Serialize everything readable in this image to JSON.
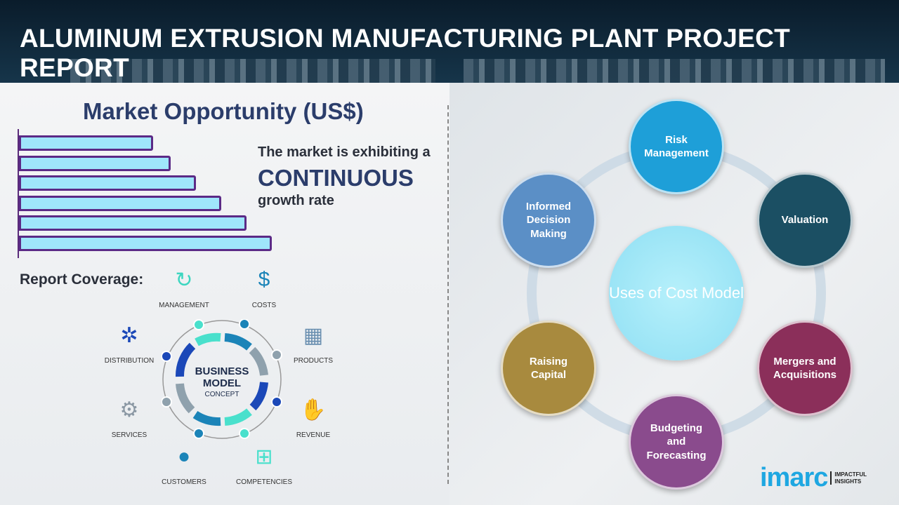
{
  "header": {
    "title": "ALUMINUM EXTRUSION MANUFACTURING PLANT PROJECT REPORT"
  },
  "market": {
    "title": "Market Opportunity (US$)",
    "bars_relative": [
      0.53,
      0.6,
      0.7,
      0.8,
      0.9,
      1.0
    ],
    "bar_color": "#9fe6fb",
    "bar_border": "#5b2a86",
    "line1": "The market is exhibiting a",
    "highlight": "CONTINUOUS",
    "line3": "growth rate"
  },
  "coverage": {
    "label": "Report Coverage:",
    "center_line1": "BUSINESS",
    "center_line2": "MODEL",
    "center_line3": "CONCEPT",
    "items": [
      "MANAGEMENT",
      "COSTS",
      "PRODUCTS",
      "REVENUE",
      "COMPETENCIES",
      "CUSTOMERS",
      "SERVICES",
      "DISTRIBUTION"
    ]
  },
  "uses": {
    "center": "Uses of Cost Model",
    "nodes": [
      {
        "label": "Risk Management",
        "color": "#1e9fd8"
      },
      {
        "label": "Valuation",
        "color": "#1b4f63"
      },
      {
        "label": "Mergers and Acquisitions",
        "color": "#8b2f5a"
      },
      {
        "label": "Budgeting and Forecasting",
        "color": "#8a4b8d"
      },
      {
        "label": "Raising Capital",
        "color": "#a88a3e"
      },
      {
        "label": "Informed Decision Making",
        "color": "#5b8fc6"
      }
    ]
  },
  "logo": {
    "brand": "imarc",
    "tag1": "IMPACTFUL",
    "tag2": "INSIGHTS"
  }
}
